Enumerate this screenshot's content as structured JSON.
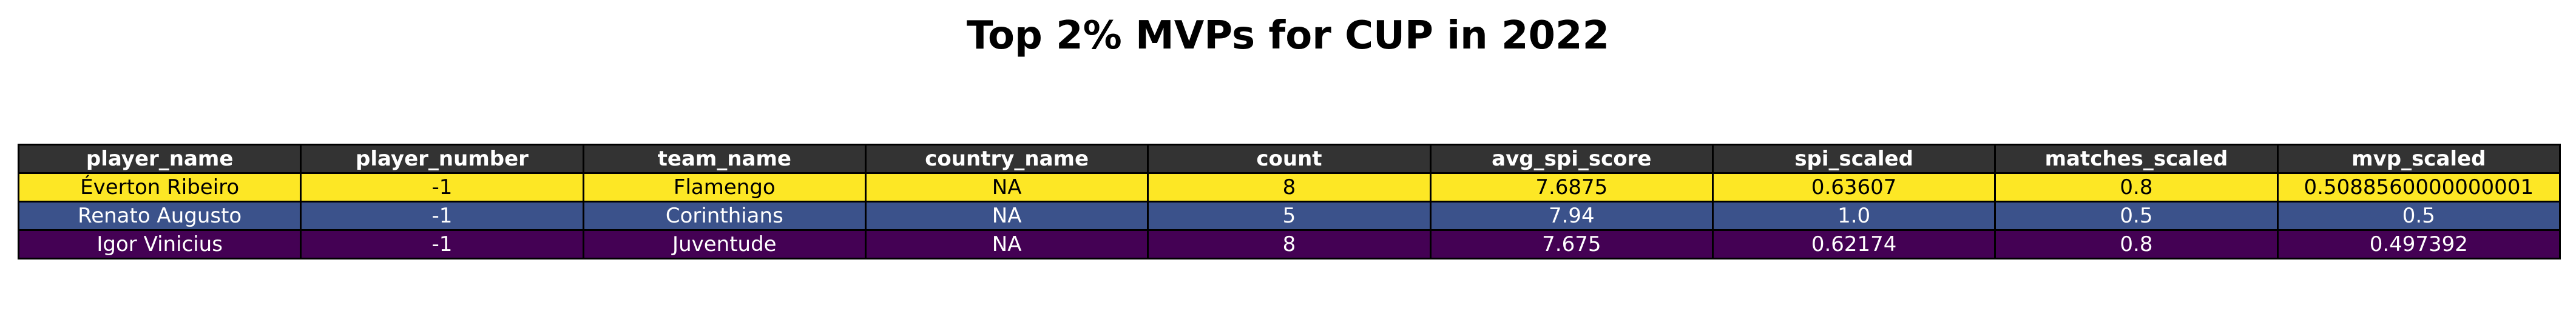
{
  "chart_data": {
    "type": "table",
    "title": "Top 2% MVPs for CUP in 2022",
    "header_color": "#333333",
    "columns": [
      "player_name",
      "player_number",
      "team_name",
      "country_name",
      "count",
      "avg_spi_score",
      "spi_scaled",
      "matches_scaled",
      "mvp_scaled"
    ],
    "rows": [
      {
        "bg": "#fde725",
        "fg": "#000000",
        "cells": [
          "Éverton Ribeiro",
          "-1",
          "Flamengo",
          "NA",
          "8",
          "7.6875",
          "0.63607",
          "0.8",
          "0.5088560000000001"
        ]
      },
      {
        "bg": "#3b528b",
        "fg": "#ffffff",
        "cells": [
          "Renato Augusto",
          "-1",
          "Corinthians",
          "NA",
          "5",
          "7.94",
          "1.0",
          "0.5",
          "0.5"
        ]
      },
      {
        "bg": "#440154",
        "fg": "#ffffff",
        "cells": [
          "Igor Vinicius",
          "-1",
          "Juventude",
          "NA",
          "8",
          "7.675",
          "0.62174",
          "0.8",
          "0.497392"
        ]
      }
    ]
  }
}
